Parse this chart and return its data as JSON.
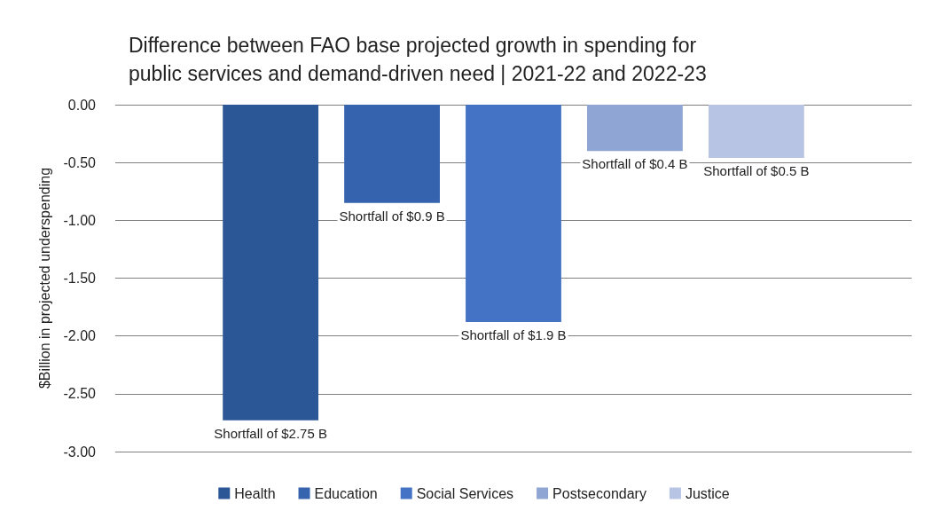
{
  "chart_data": {
    "type": "bar",
    "title": "Difference between FAO base projected growth in spending for\npublic services and demand-driven need | 2021-22 and 2022-23",
    "ylabel": "$Billion in projected underspending",
    "categories": [
      null
    ],
    "series": [
      {
        "name": "Health",
        "color": "#2b5797",
        "values": [
          -2.73
        ],
        "value_labels": [
          "Shortfall of $2.75 B"
        ]
      },
      {
        "name": "Education",
        "color": "#3563ad",
        "values": [
          -0.85
        ],
        "value_labels": [
          "Shortfall of $0.9 B"
        ]
      },
      {
        "name": "Social Services",
        "color": "#4472c4",
        "values": [
          -1.88
        ],
        "value_labels": [
          "Shortfall of $1.9 B"
        ]
      },
      {
        "name": "Postsecondary",
        "color": "#8fa5d3",
        "values": [
          -0.4
        ],
        "value_labels": [
          "Shortfall of $0.4 B"
        ]
      },
      {
        "name": "Justice",
        "color": "#b8c4e3",
        "values": [
          -0.46
        ],
        "value_labels": [
          "Shortfall of $0.5 B"
        ]
      }
    ],
    "ylim": [
      -3,
      0
    ],
    "yticks": [
      {
        "value": -3,
        "label": "-3.00"
      },
      {
        "value": -2.5,
        "label": "-2.50"
      },
      {
        "value": -2,
        "label": "-2.00"
      },
      {
        "value": -1.5,
        "label": "-1.50"
      },
      {
        "value": -1,
        "label": "-1.00"
      },
      {
        "value": -0.5,
        "label": "-0.50"
      },
      {
        "value": 0,
        "label": "0.00"
      }
    ],
    "grid": "y",
    "legend": "bottom"
  }
}
